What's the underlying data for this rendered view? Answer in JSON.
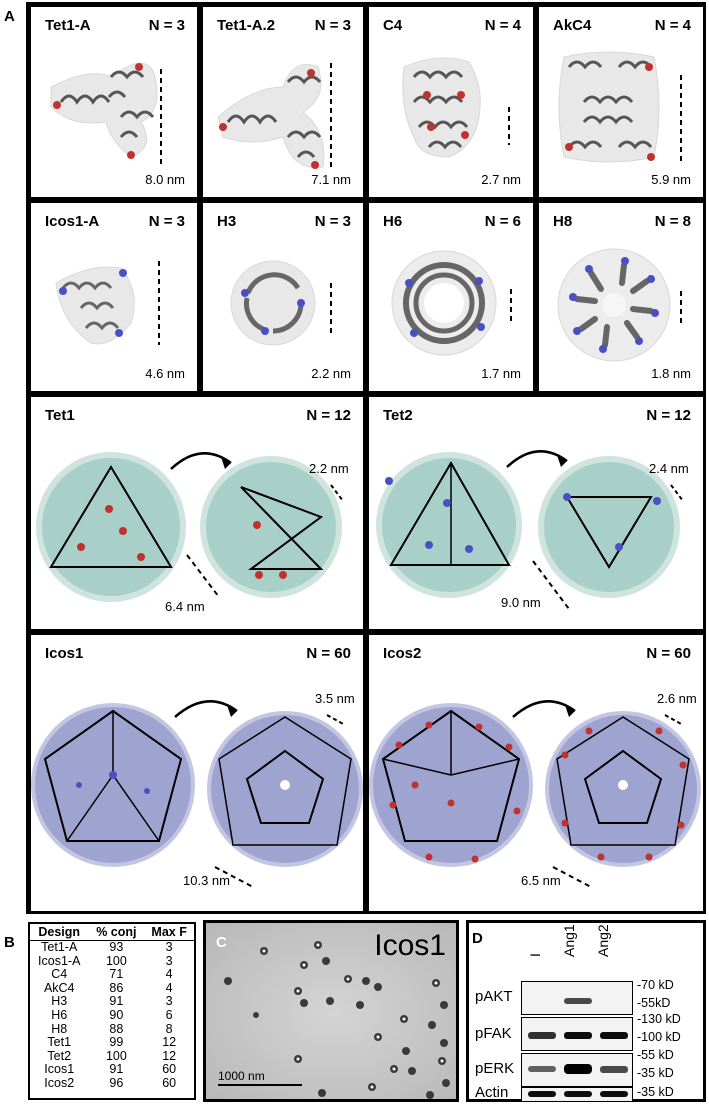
{
  "panel_letters": {
    "a": "A",
    "b": "B",
    "c": "C",
    "d": "D"
  },
  "panelA": {
    "row1": [
      {
        "name": "Tet1-A",
        "n": "N = 3",
        "scale": "8.0 nm"
      },
      {
        "name": "Tet1-A.2",
        "n": "N = 3",
        "scale": "7.1 nm"
      },
      {
        "name": "C4",
        "n": "N = 4",
        "scale": "2.7 nm"
      },
      {
        "name": "AkC4",
        "n": "N = 4",
        "scale": "5.9 nm"
      }
    ],
    "row2": [
      {
        "name": "Icos1-A",
        "n": "N = 3",
        "scale": "4.6 nm"
      },
      {
        "name": "H3",
        "n": "N = 3",
        "scale": "2.2 nm"
      },
      {
        "name": "H6",
        "n": "N = 6",
        "scale": "1.7 nm"
      },
      {
        "name": "H8",
        "n": "N = 8",
        "scale": "1.8 nm"
      }
    ],
    "row3": [
      {
        "name": "Tet1",
        "n": "N = 12",
        "scale1": "2.2 nm",
        "scale2": "6.4 nm"
      },
      {
        "name": "Tet2",
        "n": "N = 12",
        "scale1": "2.4 nm",
        "scale2": "9.0 nm"
      }
    ],
    "row4": [
      {
        "name": "Icos1",
        "n": "N = 60",
        "scale1": "3.5 nm",
        "scale2": "10.3 nm"
      },
      {
        "name": "Icos2",
        "n": "N = 60",
        "scale1": "2.6 nm",
        "scale2": "6.5 nm"
      }
    ],
    "colors": {
      "red_tag": "#c0312f",
      "blue_tag": "#4a4fc2",
      "teal": "#a9cfc9",
      "lavender": "#9fa3cf",
      "gray_protein": "#555555"
    }
  },
  "panelB": {
    "headers": [
      "Design",
      "% conj",
      "Max F"
    ],
    "rows": [
      [
        "Tet1-A",
        "93",
        "3"
      ],
      [
        "Icos1-A",
        "100",
        "3"
      ],
      [
        "C4",
        "71",
        "4"
      ],
      [
        "AkC4",
        "86",
        "4"
      ],
      [
        "H3",
        "91",
        "3"
      ],
      [
        "H6",
        "90",
        "6"
      ],
      [
        "H8",
        "88",
        "8"
      ],
      [
        "Tet1",
        "99",
        "12"
      ],
      [
        "Tet2",
        "100",
        "12"
      ],
      [
        "Icos1",
        "91",
        "60"
      ],
      [
        "Icos2",
        "96",
        "60"
      ]
    ]
  },
  "panelC": {
    "label": "Icos1",
    "scale_bar": "1000 nm"
  },
  "panelD": {
    "lanes": [
      "I",
      "Ang1",
      "Ang2"
    ],
    "blots": [
      {
        "label": "pAKT",
        "markers": [
          "-70 kD",
          "-55kD"
        ],
        "intensity": [
          0.0,
          0.7,
          0.0
        ]
      },
      {
        "label": "pFAK",
        "markers": [
          "-130 kD",
          "-100 kD"
        ],
        "intensity": [
          0.8,
          0.95,
          0.95
        ]
      },
      {
        "label": "pERK",
        "markers": [
          "-55 kD",
          "-35 kD"
        ],
        "intensity": [
          0.6,
          1.0,
          0.7
        ]
      },
      {
        "label": "Actin",
        "markers": [
          "-35 kD"
        ],
        "intensity": [
          0.95,
          0.95,
          0.95
        ]
      }
    ]
  }
}
